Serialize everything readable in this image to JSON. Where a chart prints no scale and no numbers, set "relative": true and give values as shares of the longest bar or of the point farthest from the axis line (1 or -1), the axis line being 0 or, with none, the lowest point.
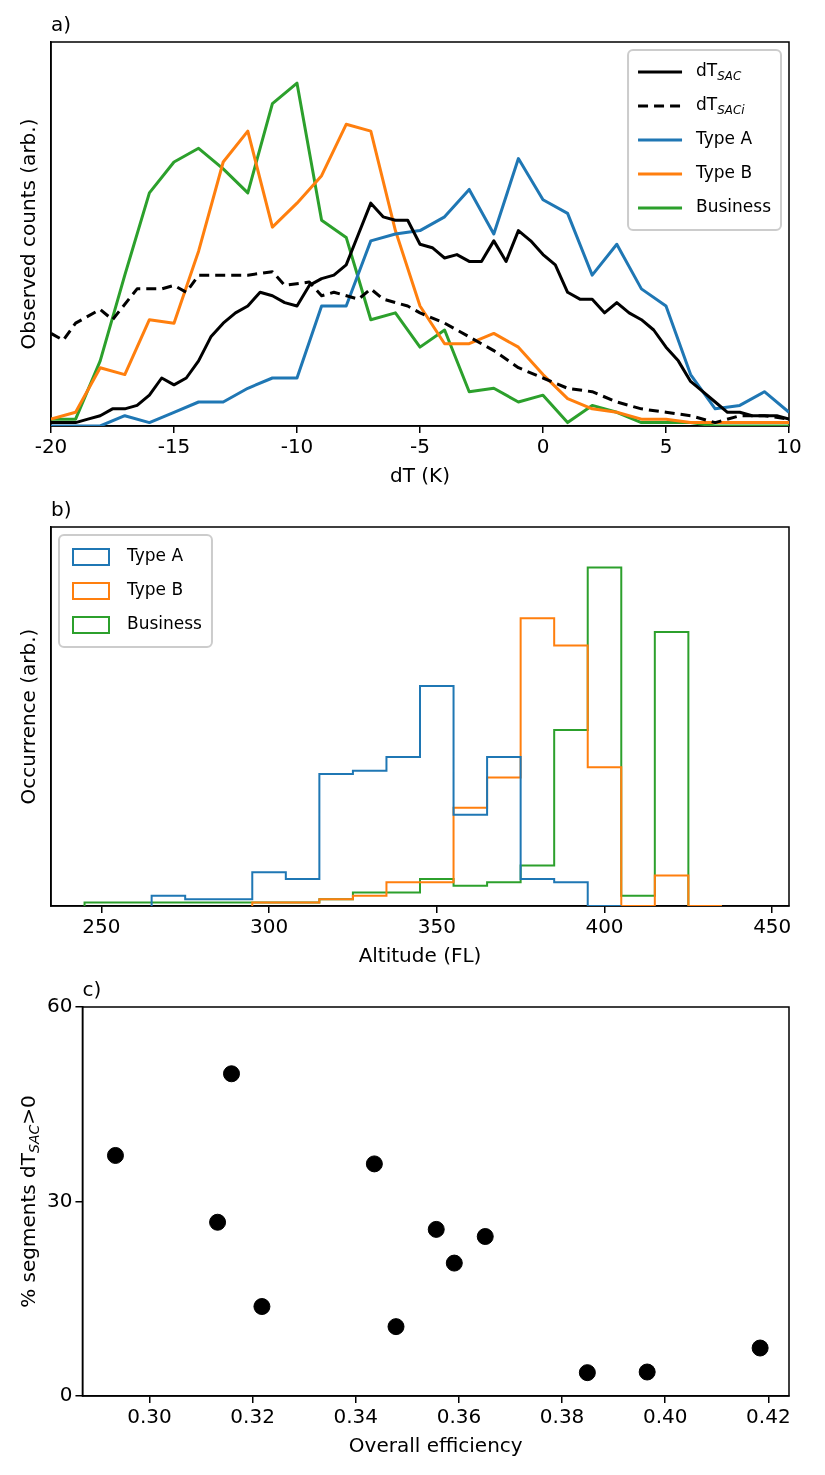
{
  "chart_data": [
    {
      "type": "line",
      "title": "a)",
      "xlabel": "dT (K)",
      "ylabel": "Observed counts (arb.)",
      "relative": true,
      "xlim": [
        -20,
        10
      ],
      "xticks": [
        -20,
        -15,
        -10,
        -5,
        0,
        5,
        10
      ],
      "legend": "top right",
      "marker": "none",
      "grid": false,
      "series": [
        {
          "name": "dT$_{SAC}$",
          "color": "#000000",
          "line_style": "solid",
          "x": [
            -20,
            -19.5,
            -19,
            -18.5,
            -18,
            -17.5,
            -17,
            -16.5,
            -16,
            -15.5,
            -15,
            -14.5,
            -14,
            -13.5,
            -13,
            -12.5,
            -12,
            -11.5,
            -11,
            -10.5,
            -10,
            -9.5,
            -9,
            -8.5,
            -8,
            -7.5,
            -7,
            -6.5,
            -6,
            -5.5,
            -5,
            -4.5,
            -4,
            -3.5,
            -3,
            -2.5,
            -2,
            -1.5,
            -1,
            -0.5,
            0,
            0.5,
            1,
            1.5,
            2,
            2.5,
            3,
            3.5,
            4,
            4.5,
            5,
            5.5,
            6,
            6.5,
            7,
            7.5,
            8,
            8.5,
            9,
            9.5,
            10
          ],
          "values": [
            0.01,
            0.01,
            0.01,
            0.02,
            0.03,
            0.05,
            0.05,
            0.06,
            0.09,
            0.14,
            0.12,
            0.14,
            0.19,
            0.26,
            0.3,
            0.33,
            0.35,
            0.39,
            0.38,
            0.36,
            0.35,
            0.41,
            0.43,
            0.44,
            0.47,
            0.56,
            0.65,
            0.61,
            0.6,
            0.6,
            0.53,
            0.52,
            0.49,
            0.5,
            0.48,
            0.48,
            0.54,
            0.48,
            0.57,
            0.54,
            0.5,
            0.47,
            0.39,
            0.37,
            0.37,
            0.33,
            0.36,
            0.33,
            0.31,
            0.28,
            0.23,
            0.19,
            0.13,
            0.1,
            0.07,
            0.04,
            0.04,
            0.03,
            0.03,
            0.03,
            0.02
          ]
        },
        {
          "name": "dT$_{SACi}$",
          "color": "#000000",
          "line_style": "dashed",
          "x": [
            -20,
            -19.5,
            -19,
            -18,
            -17.5,
            -16.5,
            -15.5,
            -15,
            -14.5,
            -14,
            -13,
            -12,
            -11,
            -10.5,
            -9.5,
            -9,
            -8.5,
            -7.5,
            -7,
            -6.5,
            -5.5,
            -5,
            -4,
            -3,
            -2,
            -1,
            0,
            1,
            2,
            3,
            4,
            5,
            6,
            7,
            8,
            9,
            10
          ],
          "values": [
            0.27,
            0.25,
            0.3,
            0.34,
            0.31,
            0.4,
            0.4,
            0.41,
            0.39,
            0.44,
            0.44,
            0.44,
            0.45,
            0.41,
            0.42,
            0.38,
            0.39,
            0.37,
            0.4,
            0.37,
            0.35,
            0.33,
            0.3,
            0.26,
            0.22,
            0.17,
            0.14,
            0.11,
            0.1,
            0.07,
            0.05,
            0.04,
            0.03,
            0.01,
            0.03,
            0.03,
            0.02
          ]
        },
        {
          "name": "Type A",
          "color": "#1f77b4",
          "line_style": "solid",
          "x": [
            -20,
            -19,
            -18,
            -17,
            -16,
            -15,
            -14,
            -13,
            -12,
            -11,
            -10,
            -9,
            -8,
            -7,
            -6,
            -5,
            -4,
            -3,
            -2,
            -1,
            0,
            1,
            2,
            3,
            4,
            5,
            6,
            7,
            8,
            9,
            10
          ],
          "values": [
            0,
            0,
            0,
            0.03,
            0.01,
            0.04,
            0.07,
            0.07,
            0.11,
            0.14,
            0.14,
            0.35,
            0.35,
            0.54,
            0.56,
            0.57,
            0.61,
            0.69,
            0.56,
            0.78,
            0.66,
            0.62,
            0.44,
            0.53,
            0.4,
            0.35,
            0.15,
            0.05,
            0.06,
            0.1,
            0.04
          ]
        },
        {
          "name": "Type B",
          "color": "#ff7f0e",
          "line_style": "solid",
          "x": [
            -20,
            -19,
            -18,
            -17,
            -16,
            -15,
            -14,
            -13,
            -12,
            -11,
            -10,
            -9,
            -8,
            -7,
            -6,
            -5,
            -4,
            -3,
            -2,
            -1,
            0,
            1,
            2,
            3,
            4,
            5,
            6,
            7,
            8,
            9,
            10
          ],
          "values": [
            0.02,
            0.04,
            0.17,
            0.15,
            0.31,
            0.3,
            0.51,
            0.77,
            0.86,
            0.58,
            0.65,
            0.73,
            0.88,
            0.86,
            0.57,
            0.35,
            0.24,
            0.24,
            0.27,
            0.23,
            0.15,
            0.08,
            0.05,
            0.04,
            0.02,
            0.02,
            0.01,
            0.01,
            0.01,
            0.01,
            0.01
          ]
        },
        {
          "name": "Business",
          "color": "#2ca02c",
          "line_style": "solid",
          "x": [
            -20,
            -19,
            -18,
            -17,
            -16,
            -15,
            -14,
            -13,
            -12,
            -11,
            -10,
            -9,
            -8,
            -7,
            -6,
            -5,
            -4,
            -3,
            -2,
            -1,
            0,
            1,
            2,
            3,
            4,
            5,
            6,
            7,
            8,
            9,
            10
          ],
          "values": [
            0.02,
            0.02,
            0.19,
            0.44,
            0.68,
            0.77,
            0.81,
            0.75,
            0.68,
            0.94,
            1,
            0.6,
            0.55,
            0.31,
            0.33,
            0.23,
            0.28,
            0.1,
            0.11,
            0.07,
            0.09,
            0.01,
            0.06,
            0.04,
            0.01,
            0.01,
            0.01,
            0,
            0,
            0,
            0
          ]
        }
      ]
    },
    {
      "type": "step",
      "title": "b)",
      "xlabel": "Altitude (FL)",
      "ylabel": "Occurrence (arb.)",
      "relative": true,
      "xlim": [
        235,
        455
      ],
      "xticks": [
        250,
        300,
        350,
        400,
        450
      ],
      "legend": "top left",
      "grid": false,
      "x": [
        245,
        255,
        265,
        275,
        285,
        295,
        305,
        315,
        325,
        335,
        345,
        355,
        365,
        375,
        385,
        395,
        405,
        415,
        425,
        435
      ],
      "series": [
        {
          "name": "Type A",
          "color": "#1f77b4",
          "values": [
            null,
            null,
            0,
            0.03,
            0.02,
            0.02,
            0.1,
            0.08,
            0.39,
            0.4,
            0.44,
            0.65,
            0.27,
            0.44,
            0.08,
            0.07,
            0,
            null,
            null,
            null
          ]
        },
        {
          "name": "Type B",
          "color": "#ff7f0e",
          "values": [
            null,
            null,
            null,
            null,
            null,
            0,
            0.01,
            0.01,
            0.02,
            0.03,
            0.07,
            0.07,
            0.29,
            0.38,
            0.85,
            0.77,
            0.41,
            0,
            0.09,
            0
          ]
        },
        {
          "name": "Business",
          "color": "#2ca02c",
          "values": [
            0,
            0.01,
            0.01,
            0.01,
            0.01,
            0.01,
            0.01,
            0.01,
            0.02,
            0.04,
            0.04,
            0.08,
            0.06,
            0.07,
            0.12,
            0.52,
            1,
            0.03,
            0.81,
            0
          ]
        }
      ]
    },
    {
      "type": "scatter",
      "title": "c)",
      "xlabel": "Overall efficiency",
      "ylabel": "% segments dT$_{SAC}$>0",
      "xlim": [
        0.287,
        0.424
      ],
      "ylim": [
        0,
        60
      ],
      "xticks": [
        {
          "value": 0.3,
          "label": "0.30"
        },
        {
          "value": 0.32,
          "label": "0.32"
        },
        {
          "value": 0.34,
          "label": "0.34"
        },
        {
          "value": 0.36,
          "label": "0.36"
        },
        {
          "value": 0.38,
          "label": "0.38"
        },
        {
          "value": 0.4,
          "label": "0.40"
        },
        {
          "value": 0.42,
          "label": "0.42"
        }
      ],
      "yticks": [
        0,
        30,
        60
      ],
      "marker": "circle",
      "grid": false,
      "legend": false,
      "color": "#000000",
      "x": [
        0.2934,
        0.3159,
        0.3132,
        0.3218,
        0.3436,
        0.3478,
        0.3556,
        0.3591,
        0.3651,
        0.3849,
        0.3965,
        0.4184
      ],
      "values": [
        37.1,
        49.7,
        26.8,
        13.8,
        35.8,
        10.7,
        25.7,
        20.5,
        24.6,
        3.6,
        3.7,
        7.4
      ]
    }
  ]
}
